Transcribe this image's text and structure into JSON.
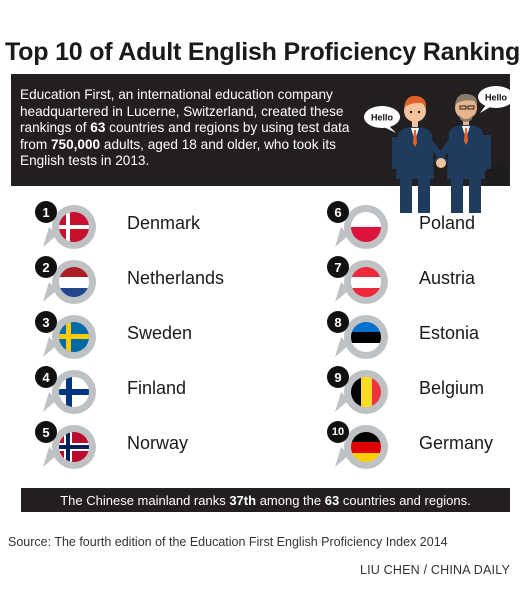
{
  "title": "Top 10 of Adult English Proficiency Ranking",
  "intro": {
    "line1": "Education First, an international education company",
    "line2": "headquartered in Lucerne, Switzerland, created these",
    "line3_pre": "rankings of ",
    "count_countries": "63",
    "line3_post": " countries and regions by using test data",
    "line4_pre": "from ",
    "count_adults": "750,000",
    "line4_post": " adults, aged 18 and older, who took its",
    "line5": "English tests in 2013."
  },
  "speech": {
    "left": "Hello",
    "right": "Hello"
  },
  "rankings": [
    {
      "rank": "1",
      "country": "Denmark",
      "flag": "denmark"
    },
    {
      "rank": "2",
      "country": "Netherlands",
      "flag": "netherlands"
    },
    {
      "rank": "3",
      "country": "Sweden",
      "flag": "sweden"
    },
    {
      "rank": "4",
      "country": "Finland",
      "flag": "finland"
    },
    {
      "rank": "5",
      "country": "Norway",
      "flag": "norway"
    },
    {
      "rank": "6",
      "country": "Poland",
      "flag": "poland"
    },
    {
      "rank": "7",
      "country": "Austria",
      "flag": "austria"
    },
    {
      "rank": "8",
      "country": "Estonia",
      "flag": "estonia"
    },
    {
      "rank": "9",
      "country": "Belgium",
      "flag": "belgium"
    },
    {
      "rank": "10",
      "country": "Germany",
      "flag": "germany"
    }
  ],
  "footer": {
    "pre": "The Chinese mainland ranks ",
    "rank": "37th",
    "mid": " among the ",
    "total": "63",
    "post": " countries and regions."
  },
  "source": "Source: The fourth edition of the Education First English Proficiency Index 2014",
  "credit": "LIU CHEN / CHINA DAILY",
  "colors": {
    "dark_bar": "#231f20",
    "pin_gray": "#bfc2c5",
    "suit": "#1f3c5e",
    "hair": "#e0622a"
  }
}
